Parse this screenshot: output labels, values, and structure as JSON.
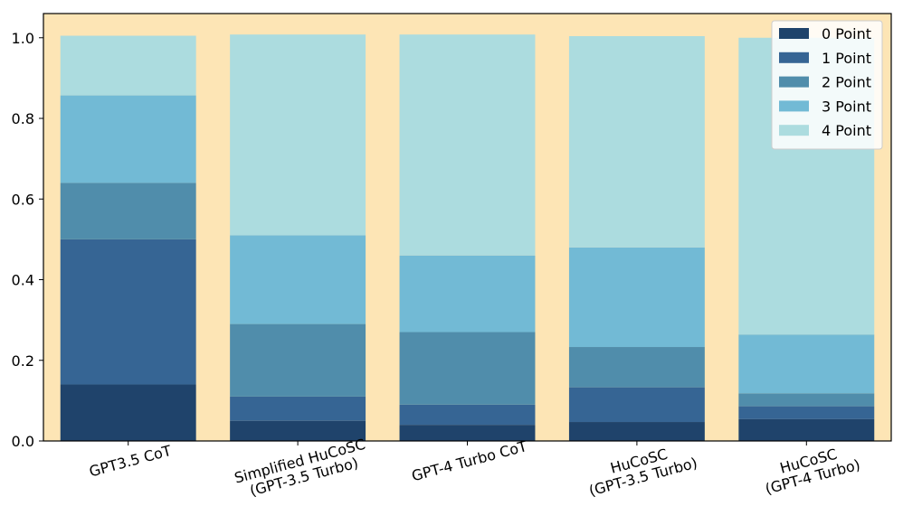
{
  "chart_data": {
    "type": "bar",
    "stacked": true,
    "categories": [
      [
        "GPT3.5 CoT"
      ],
      [
        "Simplified HuCoSC",
        "(GPT-3.5 Turbo)"
      ],
      [
        "GPT-4 Turbo CoT"
      ],
      [
        "HuCoSC",
        "(GPT-3.5 Turbo)"
      ],
      [
        "HuCoSC",
        "(GPT-4 Turbo)"
      ]
    ],
    "series": [
      {
        "name": "0 Point",
        "color": "#1f436b",
        "values": [
          0.14,
          0.05,
          0.04,
          0.047,
          0.054
        ]
      },
      {
        "name": "1 Point",
        "color": "#366594",
        "values": [
          0.36,
          0.06,
          0.05,
          0.086,
          0.032
        ]
      },
      {
        "name": "2 Point",
        "color": "#508dab",
        "values": [
          0.14,
          0.18,
          0.18,
          0.1,
          0.032
        ]
      },
      {
        "name": "3 Point",
        "color": "#72bad5",
        "values": [
          0.217,
          0.22,
          0.19,
          0.247,
          0.146
        ]
      },
      {
        "name": "4 Point",
        "color": "#acdcdf",
        "values": [
          0.148,
          0.498,
          0.548,
          0.524,
          0.736
        ]
      }
    ],
    "ylim": [
      0,
      1.06
    ],
    "yticks": [
      "0.0",
      "0.2",
      "0.4",
      "0.6",
      "0.8",
      "1.0"
    ],
    "ytick_values": [
      0,
      0.2,
      0.4,
      0.6,
      0.8,
      1.0
    ],
    "xlabel": "",
    "ylabel": "",
    "title": "",
    "legend_position": "top-right",
    "background_color": "#fde5b5",
    "grid": false
  }
}
